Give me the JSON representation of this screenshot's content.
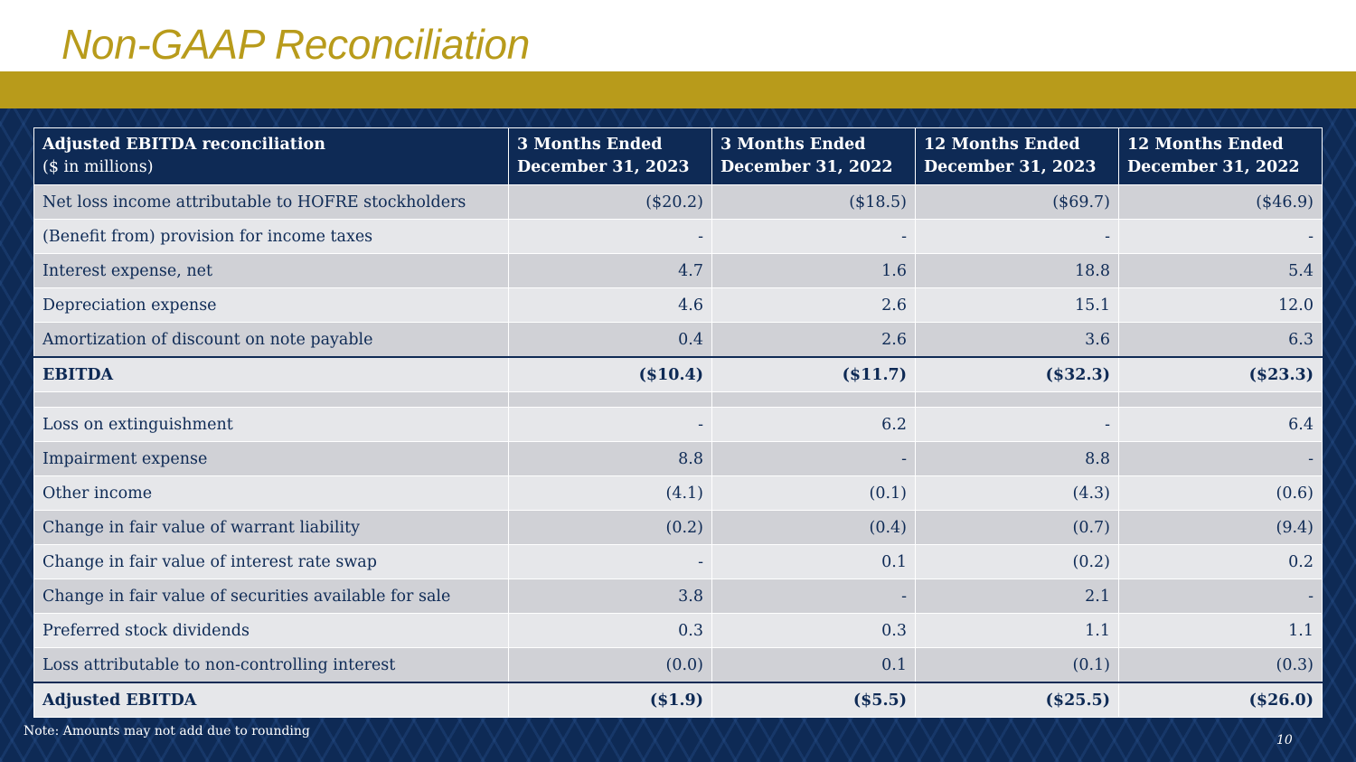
{
  "title": "Non-GAAP Reconciliation",
  "header": {
    "label_line1": "Adjusted EBITDA reconciliation",
    "label_line2": "($ in millions)",
    "columns": [
      {
        "line1": "3 Months Ended",
        "line2": "December 31, 2023"
      },
      {
        "line1": "3 Months Ended",
        "line2": "December 31, 2022"
      },
      {
        "line1": "12 Months Ended",
        "line2": "December 31, 2023"
      },
      {
        "line1": "12 Months Ended",
        "line2": "December 31, 2022"
      }
    ]
  },
  "rows": [
    {
      "label": "Net loss income attributable to HOFRE stockholders",
      "values": [
        "($20.2)",
        "($18.5)",
        "($69.7)",
        "($46.9)"
      ]
    },
    {
      "label": "(Benefit from) provision for income taxes",
      "values": [
        "-",
        "-",
        "-",
        "-"
      ]
    },
    {
      "label": "Interest expense, net",
      "values": [
        "4.7",
        "1.6",
        "18.8",
        "5.4"
      ]
    },
    {
      "label": "Depreciation expense",
      "values": [
        "4.6",
        "2.6",
        "15.1",
        "12.0"
      ]
    },
    {
      "label": "Amortization of discount on note payable",
      "values": [
        "0.4",
        "2.6",
        "3.6",
        "6.3"
      ]
    },
    {
      "label": "EBITDA",
      "values": [
        "($10.4)",
        "($11.7)",
        "($32.3)",
        "($23.3)"
      ]
    },
    {
      "label": "Loss on extinguishment",
      "values": [
        "-",
        "6.2",
        "-",
        "6.4"
      ]
    },
    {
      "label": "Impairment expense",
      "values": [
        "8.8",
        "-",
        "8.8",
        "-"
      ]
    },
    {
      "label": "Other income",
      "values": [
        "(4.1)",
        "(0.1)",
        "(4.3)",
        "(0.6)"
      ]
    },
    {
      "label": "Change in fair value of warrant liability",
      "values": [
        "(0.2)",
        "(0.4)",
        "(0.7)",
        "(9.4)"
      ]
    },
    {
      "label": "Change in fair value of interest rate swap",
      "values": [
        "-",
        "0.1",
        "(0.2)",
        "0.2"
      ]
    },
    {
      "label": "Change in fair value of securities available for sale",
      "values": [
        "3.8",
        "-",
        "2.1",
        "-"
      ]
    },
    {
      "label": "Preferred stock dividends",
      "values": [
        "0.3",
        "0.3",
        "1.1",
        "1.1"
      ]
    },
    {
      "label": "Loss attributable to non-controlling interest",
      "values": [
        "(0.0)",
        "0.1",
        "(0.1)",
        "(0.3)"
      ]
    },
    {
      "label": "Adjusted EBITDA",
      "values": [
        "($1.9)",
        "($5.5)",
        "($25.5)",
        "($26.0)"
      ]
    }
  ],
  "note": "Note: Amounts may not add due to rounding",
  "page_number": "10",
  "colors": {
    "gold": "#b89b1b",
    "navy": "#0e2a55",
    "row_dark": "#d0d1d6",
    "row_light": "#e6e7ea"
  }
}
